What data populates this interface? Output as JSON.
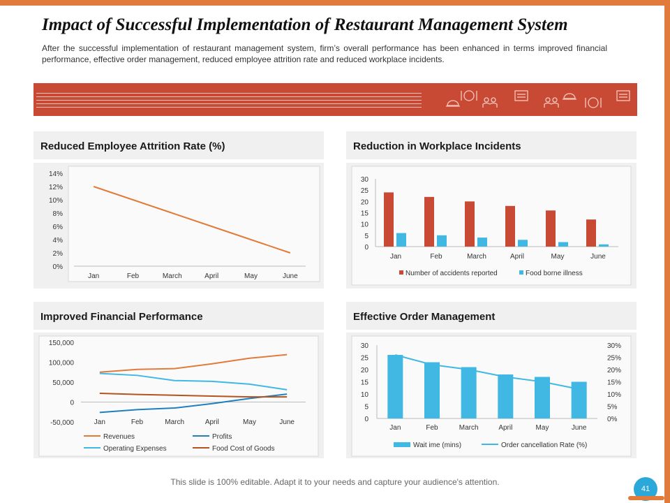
{
  "slide": {
    "title": "Impact of Successful Implementation of Restaurant Management System",
    "subtitle": "After the successful implementation of restaurant management system, firm’s overall performance has been enhanced in terms improved financial performance, effective order management, reduced employee attrition rate and reduced workplace incidents.",
    "footer": "This slide is 100% editable. Adapt it to your needs and capture your audience's attention.",
    "page_number": "41"
  },
  "colors": {
    "accent_orange": "#e07b3c",
    "banner_red": "#c84a35",
    "bar_red": "#c84a35",
    "bar_blue": "#41b8e4",
    "line_orange": "#e07b3c",
    "line_blue": "#1f7fbf",
    "line_lightblue": "#41b8e4",
    "line_brown": "#b3541e",
    "page_badge": "#29a8d9"
  },
  "banner_icons": [
    "cloche-icon",
    "plate-cutlery-icon",
    "chefs-icon",
    "menu-board-icon",
    "waiters-icon",
    "cloche-icon",
    "plate-cutlery-icon",
    "menu-board-icon",
    "diners-icon"
  ],
  "chart_data": [
    {
      "id": "attrition",
      "type": "line",
      "title": "Reduced Employee Attrition Rate (%)",
      "categories": [
        "Jan",
        "Feb",
        "March",
        "April",
        "May",
        "June"
      ],
      "series": [
        {
          "name": "Attrition Rate",
          "values": [
            12,
            10,
            8,
            6,
            4,
            2
          ]
        }
      ],
      "ylim": [
        0,
        14
      ],
      "yticks": [
        "0%",
        "2%",
        "4%",
        "6%",
        "8%",
        "10%",
        "12%",
        "14%"
      ],
      "legend": "none"
    },
    {
      "id": "incidents",
      "type": "bar",
      "title": "Reduction in Workplace Incidents",
      "categories": [
        "Jan",
        "Feb",
        "March",
        "April",
        "May",
        "June"
      ],
      "series": [
        {
          "name": "Number of accidents reported",
          "values": [
            24,
            22,
            20,
            18,
            16,
            12
          ]
        },
        {
          "name": "Food borne illness",
          "values": [
            6,
            5,
            4,
            3,
            2,
            1
          ]
        }
      ],
      "ylim": [
        0,
        30
      ],
      "yticks": [
        "0",
        "5",
        "10",
        "15",
        "20",
        "25",
        "30"
      ],
      "legend": "bottom"
    },
    {
      "id": "financial",
      "type": "line",
      "title": "Improved Financial Performance",
      "categories": [
        "Jan",
        "Feb",
        "March",
        "April",
        "May",
        "June"
      ],
      "series": [
        {
          "name": "Revenues",
          "values": [
            75000,
            82000,
            84000,
            96000,
            110000,
            119000
          ]
        },
        {
          "name": "Profits",
          "values": [
            -26000,
            -19000,
            -15000,
            -4000,
            9000,
            20000
          ]
        },
        {
          "name": "Operating Expenses",
          "values": [
            72000,
            67000,
            54000,
            52000,
            45000,
            31000
          ]
        },
        {
          "name": "Food Cost of Goods",
          "values": [
            22000,
            19000,
            17000,
            15000,
            13000,
            13000
          ]
        }
      ],
      "ylim": [
        -50000,
        150000
      ],
      "yticks": [
        "-50,000",
        "0",
        "50,000",
        "100,000",
        "150,000"
      ],
      "legend": "bottom"
    },
    {
      "id": "orders",
      "type": "bar",
      "title": "Effective Order Management",
      "categories": [
        "Jan",
        "Feb",
        "March",
        "April",
        "May",
        "June"
      ],
      "series": [
        {
          "name": "Wait ime (mins)",
          "type": "bar",
          "axis": "left",
          "values": [
            26,
            23,
            21,
            18,
            17,
            15
          ]
        },
        {
          "name": "Order cancellation Rate (%)",
          "type": "line",
          "axis": "right",
          "values": [
            26,
            22,
            20,
            17,
            15,
            12
          ]
        }
      ],
      "ylim": [
        0,
        30
      ],
      "yticks": [
        "0",
        "5",
        "10",
        "15",
        "20",
        "25",
        "30"
      ],
      "y2lim": [
        0,
        30
      ],
      "y2ticks": [
        "0%",
        "5%",
        "10%",
        "15%",
        "20%",
        "25%",
        "30%"
      ],
      "legend": "bottom"
    }
  ]
}
